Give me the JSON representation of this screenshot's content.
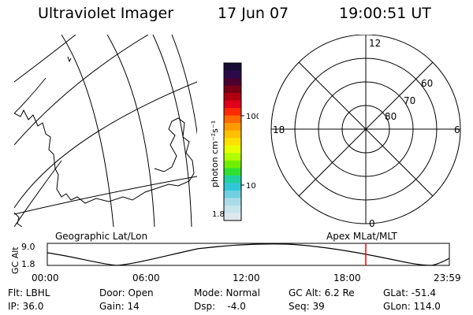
{
  "header": {
    "title": "Ultraviolet Imager",
    "date": "17 Jun 07",
    "time": "19:00:51 UT"
  },
  "colorbar": {
    "unit_label": "photon cm⁻²s⁻¹",
    "tick_labels": [
      "100",
      "10",
      "1.8"
    ],
    "colors": [
      "#1a0d33",
      "#2a0a4a",
      "#4a0030",
      "#7a0018",
      "#b00010",
      "#e0001a",
      "#ff2a00",
      "#ff6a00",
      "#ff9a00",
      "#ffc000",
      "#ffe000",
      "#e8ff00",
      "#b0ff00",
      "#70f000",
      "#30e030",
      "#20d0a0",
      "#30c8d8",
      "#70d0e0",
      "#a8dce8",
      "#c8e4ec",
      "#dde8ee"
    ]
  },
  "polar": {
    "mlt_labels": {
      "top": "12",
      "left": "18",
      "right": "6",
      "bottom": "0"
    },
    "lat_labels": [
      "60",
      "70",
      "80"
    ]
  },
  "timeline": {
    "left_label": "Geographic Lat/Lon",
    "right_label": "Apex MLat/MLT",
    "axis_label": "GC Alt",
    "y_ticks": [
      "9.0",
      "1.8"
    ],
    "x_ticks": [
      "00:00",
      "06:00",
      "12:00",
      "18:00",
      "23:59"
    ],
    "cursor_hours": 19.01,
    "cursor_color": "#ff0000"
  },
  "footer": {
    "filter": "Flt: LBHL",
    "ip": "IP: 36.0",
    "door": "Door: Open",
    "gain": "Gain: 14",
    "mode": "Mode: Normal",
    "dsp": "Dsp:    -4.0",
    "gc_alt": "GC Alt: 6.2 Re",
    "seq": "Seq: 39",
    "glat": "GLat: -51.4",
    "glon": "GLon: 114.0"
  }
}
